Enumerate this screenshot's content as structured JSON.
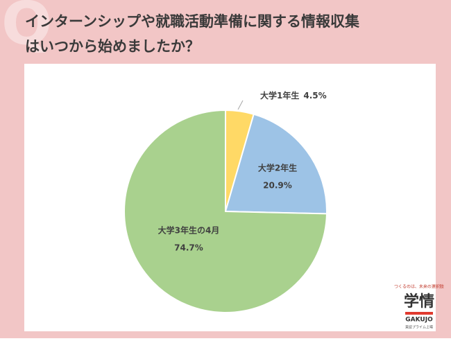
{
  "watermark": "Q",
  "chart_data": {
    "type": "pie",
    "title_lines": [
      "インターンシップや就職活動準備に関する情報収集",
      "はいつから始めましたか？"
    ],
    "categories": [
      "大学1年生",
      "大学2年生",
      "大学3年生の4月"
    ],
    "values": [
      4.5,
      20.9,
      74.7
    ],
    "value_labels": [
      "4.5%",
      "20.9%",
      "74.7%"
    ],
    "colors": [
      "#ffd966",
      "#9dc3e6",
      "#a9d18e"
    ]
  },
  "logo": {
    "tagline": "つくるのは、未来の選択肢",
    "name": "学情",
    "latin": "GAKUJO",
    "listing": "東証プライム上場"
  }
}
